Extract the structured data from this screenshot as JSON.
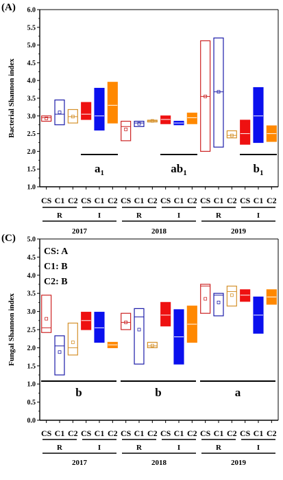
{
  "chart_data": [
    {
      "type": "box",
      "panel": "(A)",
      "ylabel": "Bacterial Shannon index",
      "ylim": [
        1.0,
        6.0
      ],
      "yticks": [
        "1.0",
        "1.5",
        "2.0",
        "2.5",
        "3.0",
        "3.5",
        "4.0",
        "4.5",
        "5.0",
        "5.5",
        "6.0"
      ],
      "groups": [
        {
          "label": "CS",
          "year": "2017",
          "site": "R",
          "q1": 2.85,
          "median": 2.95,
          "q3": 3.0,
          "mean": 2.93,
          "color": "#cc2222",
          "filled": false
        },
        {
          "label": "C1",
          "year": "2017",
          "site": "R",
          "q1": 2.75,
          "median": 3.05,
          "q3": 3.45,
          "mean": 3.1,
          "color": "#1a1aa8",
          "filled": false
        },
        {
          "label": "C2",
          "year": "2017",
          "site": "R",
          "q1": 2.8,
          "median": 2.98,
          "q3": 3.18,
          "mean": 2.98,
          "color": "#d4902a",
          "filled": false
        },
        {
          "label": "CS",
          "year": "2017",
          "site": "I",
          "q1": 2.9,
          "median": 3.05,
          "q3": 3.38,
          "mean": 3.1,
          "color": "#ee1111",
          "filled": true
        },
        {
          "label": "C1",
          "year": "2017",
          "site": "I",
          "q1": 2.6,
          "median": 3.0,
          "q3": 3.78,
          "mean": 3.1,
          "color": "#0a10ee",
          "filled": true
        },
        {
          "label": "C2",
          "year": "2017",
          "site": "I",
          "q1": 2.8,
          "median": 3.3,
          "q3": 3.95,
          "mean": 3.3,
          "color": "#ff8800",
          "filled": true
        },
        {
          "label": "CS",
          "year": "2018",
          "site": "R",
          "q1": 2.3,
          "median": 2.7,
          "q3": 2.85,
          "mean": 2.62,
          "color": "#cc2222",
          "filled": false
        },
        {
          "label": "C1",
          "year": "2018",
          "site": "R",
          "q1": 2.7,
          "median": 2.8,
          "q3": 2.85,
          "mean": 2.78,
          "color": "#1a1aa8",
          "filled": false
        },
        {
          "label": "C2",
          "year": "2018",
          "site": "R",
          "q1": 2.83,
          "median": 2.86,
          "q3": 2.88,
          "mean": 2.86,
          "color": "#d4902a",
          "filled": false
        },
        {
          "label": "CS",
          "year": "2018",
          "site": "I",
          "q1": 2.78,
          "median": 2.9,
          "q3": 3.0,
          "mean": 2.9,
          "color": "#ee1111",
          "filled": true
        },
        {
          "label": "C1",
          "year": "2018",
          "site": "I",
          "q1": 2.75,
          "median": 2.8,
          "q3": 2.85,
          "mean": 2.8,
          "color": "#0a10ee",
          "filled": true
        },
        {
          "label": "C2",
          "year": "2018",
          "site": "I",
          "q1": 2.78,
          "median": 2.95,
          "q3": 3.08,
          "mean": 2.95,
          "color": "#ff8800",
          "filled": true
        },
        {
          "label": "CS",
          "year": "2019",
          "site": "R",
          "q1": 2.0,
          "median": 3.55,
          "q3": 5.12,
          "mean": 3.55,
          "color": "#cc2222",
          "filled": false
        },
        {
          "label": "C1",
          "year": "2019",
          "site": "R",
          "q1": 2.12,
          "median": 3.68,
          "q3": 5.2,
          "mean": 3.68,
          "color": "#1a1aa8",
          "filled": false
        },
        {
          "label": "C2",
          "year": "2019",
          "site": "R",
          "q1": 2.38,
          "median": 2.45,
          "q3": 2.58,
          "mean": 2.45,
          "color": "#d4902a",
          "filled": false
        },
        {
          "label": "CS",
          "year": "2019",
          "site": "I",
          "q1": 2.2,
          "median": 2.5,
          "q3": 2.88,
          "mean": 2.5,
          "color": "#ee1111",
          "filled": true
        },
        {
          "label": "C1",
          "year": "2019",
          "site": "I",
          "q1": 2.25,
          "median": 3.0,
          "q3": 3.8,
          "mean": 3.0,
          "color": "#0a10ee",
          "filled": true
        },
        {
          "label": "C2",
          "year": "2019",
          "site": "I",
          "q1": 2.28,
          "median": 2.5,
          "q3": 2.72,
          "mean": 2.5,
          "color": "#ff8800",
          "filled": true
        }
      ],
      "significance": [
        {
          "text": "a",
          "sub": "1",
          "year": "2017"
        },
        {
          "text": "ab",
          "sub": "1",
          "year": "2018"
        },
        {
          "text": "b",
          "sub": "1",
          "year": "2019"
        }
      ],
      "sites": [
        "R",
        "I"
      ],
      "years": [
        "2017",
        "2018",
        "2019"
      ]
    },
    {
      "type": "box",
      "panel": "(C)",
      "ylabel": "Fungal Shannon index",
      "ylim": [
        0.0,
        5.0
      ],
      "yticks": [
        "0.0",
        "0.5",
        "1.0",
        "1.5",
        "2.0",
        "2.5",
        "3.0",
        "3.5",
        "4.0",
        "4.5",
        "5.0"
      ],
      "legend": [
        "CS: A",
        "C1: B",
        "C2: B"
      ],
      "groups": [
        {
          "label": "CS",
          "year": "2017",
          "site": "R",
          "q1": 2.42,
          "median": 2.55,
          "q3": 3.45,
          "mean": 2.8,
          "color": "#cc2222",
          "filled": false
        },
        {
          "label": "C1",
          "year": "2017",
          "site": "R",
          "q1": 1.25,
          "median": 2.05,
          "q3": 2.33,
          "mean": 1.88,
          "color": "#1a1aa8",
          "filled": false
        },
        {
          "label": "C2",
          "year": "2017",
          "site": "R",
          "q1": 1.8,
          "median": 2.0,
          "q3": 2.68,
          "mean": 2.15,
          "color": "#d4902a",
          "filled": false
        },
        {
          "label": "CS",
          "year": "2017",
          "site": "I",
          "q1": 2.5,
          "median": 2.75,
          "q3": 2.98,
          "mean": 2.75,
          "color": "#ee1111",
          "filled": true
        },
        {
          "label": "C1",
          "year": "2017",
          "site": "I",
          "q1": 2.15,
          "median": 2.55,
          "q3": 2.98,
          "mean": 2.55,
          "color": "#0a10ee",
          "filled": true
        },
        {
          "label": "C2",
          "year": "2017",
          "site": "I",
          "q1": 2.0,
          "median": 2.08,
          "q3": 2.15,
          "mean": 2.08,
          "color": "#ff8800",
          "filled": true
        },
        {
          "label": "CS",
          "year": "2018",
          "site": "R",
          "q1": 2.5,
          "median": 2.7,
          "q3": 2.95,
          "mean": 2.7,
          "color": "#cc2222",
          "filled": false
        },
        {
          "label": "C1",
          "year": "2018",
          "site": "R",
          "q1": 1.55,
          "median": 2.85,
          "q3": 3.08,
          "mean": 2.5,
          "color": "#1a1aa8",
          "filled": false
        },
        {
          "label": "C2",
          "year": "2018",
          "site": "R",
          "q1": 2.0,
          "median": 2.05,
          "q3": 2.15,
          "mean": 2.06,
          "color": "#d4902a",
          "filled": false
        },
        {
          "label": "CS",
          "year": "2018",
          "site": "I",
          "q1": 2.6,
          "median": 2.9,
          "q3": 3.25,
          "mean": 2.9,
          "color": "#ee1111",
          "filled": true
        },
        {
          "label": "C1",
          "year": "2018",
          "site": "I",
          "q1": 1.55,
          "median": 2.3,
          "q3": 3.05,
          "mean": 2.3,
          "color": "#0a10ee",
          "filled": true
        },
        {
          "label": "C2",
          "year": "2018",
          "site": "I",
          "q1": 2.15,
          "median": 2.65,
          "q3": 3.15,
          "mean": 2.65,
          "color": "#ff8800",
          "filled": true
        },
        {
          "label": "CS",
          "year": "2019",
          "site": "R",
          "q1": 2.95,
          "median": 3.7,
          "q3": 3.75,
          "mean": 3.35,
          "color": "#cc2222",
          "filled": false
        },
        {
          "label": "C1",
          "year": "2019",
          "site": "R",
          "q1": 2.88,
          "median": 3.45,
          "q3": 3.5,
          "mean": 3.25,
          "color": "#1a1aa8",
          "filled": false
        },
        {
          "label": "C2",
          "year": "2019",
          "site": "R",
          "q1": 3.15,
          "median": 3.55,
          "q3": 3.7,
          "mean": 3.45,
          "color": "#d4902a",
          "filled": false
        },
        {
          "label": "CS",
          "year": "2019",
          "site": "I",
          "q1": 3.28,
          "median": 3.45,
          "q3": 3.6,
          "mean": 3.45,
          "color": "#ee1111",
          "filled": true
        },
        {
          "label": "C1",
          "year": "2019",
          "site": "I",
          "q1": 2.4,
          "median": 2.9,
          "q3": 3.4,
          "mean": 2.9,
          "color": "#0a10ee",
          "filled": true
        },
        {
          "label": "C2",
          "year": "2019",
          "site": "I",
          "q1": 3.2,
          "median": 3.4,
          "q3": 3.6,
          "mean": 3.4,
          "color": "#ff8800",
          "filled": true
        }
      ],
      "significance": [
        {
          "text": "b",
          "sub": "",
          "year": "2017"
        },
        {
          "text": "b",
          "sub": "",
          "year": "2018"
        },
        {
          "text": "a",
          "sub": "",
          "year": "2019"
        }
      ],
      "sites": [
        "R",
        "I"
      ],
      "years": [
        "2017",
        "2018",
        "2019"
      ]
    }
  ]
}
